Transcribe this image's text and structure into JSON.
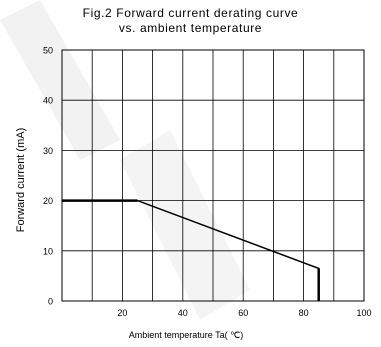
{
  "chart_data": {
    "type": "line",
    "title": "Fig.2 Forward current derating curve",
    "subtitle": "vs. ambient temperature",
    "xlabel": "Ambient temperature Ta( ℃)",
    "ylabel": "Forward current (mA)",
    "xlim": [
      0,
      100
    ],
    "ylim": [
      0,
      50
    ],
    "x_ticks": [
      20,
      40,
      60,
      80,
      100
    ],
    "y_ticks": [
      0,
      10,
      20,
      30,
      40,
      50
    ],
    "x_tick_labels": [
      "20",
      "40",
      "60",
      "80",
      "100"
    ],
    "y_tick_labels": [
      "0",
      "10",
      "20",
      "30",
      "40",
      "50"
    ],
    "x_grid": [
      10,
      20,
      30,
      40,
      50,
      60,
      70,
      80,
      90
    ],
    "y_grid": [
      10,
      20,
      30,
      40
    ],
    "grid": true,
    "legend": "none",
    "series": [
      {
        "x": [
          0,
          25,
          85,
          85
        ],
        "y": [
          20,
          20,
          6.5,
          0
        ]
      }
    ]
  }
}
